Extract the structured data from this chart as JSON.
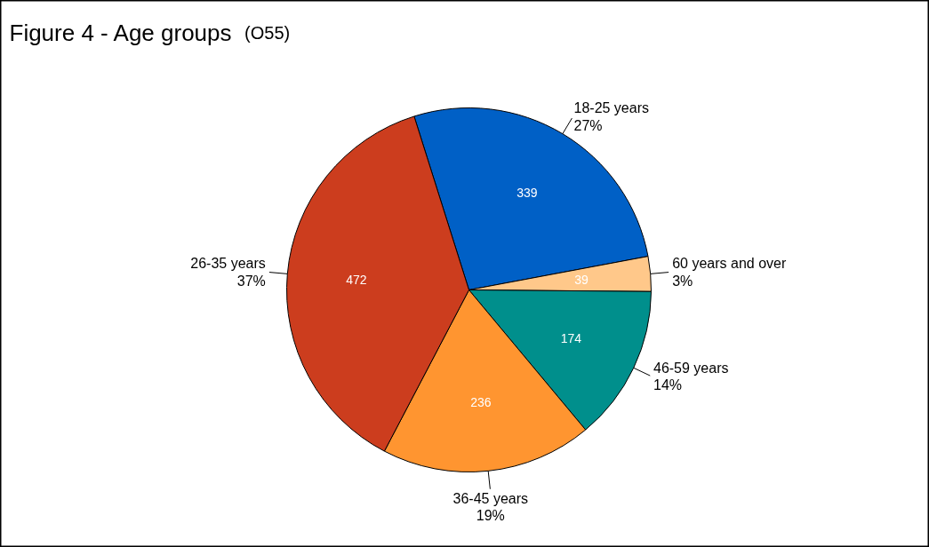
{
  "chart_data": {
    "type": "pie",
    "title": "Figure 4 - Age groups",
    "subtitle": "(O55)",
    "categories": [
      "18-25 years",
      "60 years and over",
      "46-59 years",
      "36-45 years",
      "26-35 years"
    ],
    "values": [
      339,
      39,
      174,
      236,
      472
    ],
    "colors": [
      "#0060c6",
      "#ffc88a",
      "#008f8c",
      "#ff9530",
      "#cc3d1e"
    ],
    "data_labels": true,
    "annotations": [
      {
        "text": "27%",
        "x": "18-25 years"
      },
      {
        "text": "3%",
        "x": "60 years and over"
      },
      {
        "text": "14%",
        "x": "46-59 years"
      },
      {
        "text": "19%",
        "x": "36-45 years"
      },
      {
        "text": "37%",
        "x": "26-35 years"
      }
    ]
  }
}
